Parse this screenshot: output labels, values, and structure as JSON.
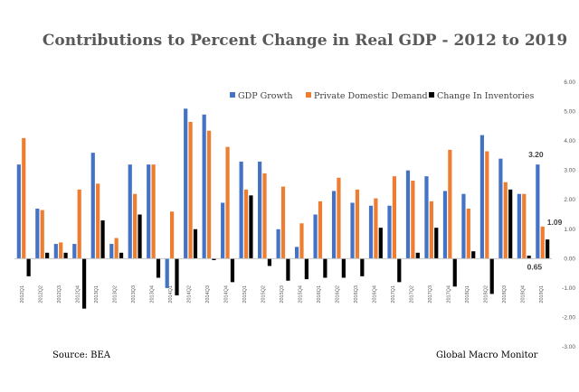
{
  "colors": {
    "gdp": "#4472C4",
    "pdd": "#ED7D31",
    "inv": "#000000",
    "text": "#595959",
    "axis": "#d9d9d9"
  },
  "chart_data": {
    "type": "bar",
    "title": "Contributions to Percent Change in Real GDP - 2012 to 2019",
    "ylim": [
      -3.0,
      6.0
    ],
    "y_ticks": [
      "6.00",
      "5.00",
      "4.00",
      "3.00",
      "2.00",
      "1.00",
      "0.00",
      "-1.00",
      "-2.00",
      "-3.00"
    ],
    "y_tick_values": [
      6,
      5,
      4,
      3,
      2,
      1,
      0,
      -1,
      -2,
      -3
    ],
    "legend_position": "top-right",
    "categories": [
      "2012Q1",
      "2012Q2",
      "2012Q3",
      "2012Q4",
      "2013Q1",
      "2013Q2",
      "2013Q3",
      "2013Q4",
      "2014Q1",
      "2014Q2",
      "2014Q3",
      "2014Q4",
      "2015Q1",
      "2015Q2",
      "2015Q3",
      "2015Q4",
      "2016Q1",
      "2016Q2",
      "2016Q3",
      "2016Q4",
      "2017Q1",
      "2017Q2",
      "2017Q3",
      "2017Q4",
      "2018Q1",
      "2018Q2",
      "2018Q3",
      "2018Q4",
      "2019Q1"
    ],
    "series": [
      {
        "name": "GDP Growth",
        "key": "gdp",
        "values": [
          3.2,
          1.7,
          0.5,
          0.5,
          3.6,
          0.5,
          3.2,
          3.2,
          -1.0,
          5.1,
          4.9,
          1.9,
          3.3,
          3.3,
          1.0,
          0.4,
          1.5,
          2.3,
          1.9,
          1.8,
          1.8,
          3.0,
          2.8,
          2.3,
          2.2,
          4.2,
          3.4,
          2.2,
          3.2
        ]
      },
      {
        "name": "Private Domestic Demand",
        "key": "pdd",
        "values": [
          4.1,
          1.65,
          0.55,
          2.35,
          2.55,
          0.7,
          2.2,
          3.2,
          1.6,
          4.65,
          4.35,
          3.8,
          2.35,
          2.9,
          2.45,
          1.2,
          1.95,
          2.75,
          2.35,
          2.05,
          2.8,
          2.65,
          1.95,
          3.7,
          1.7,
          3.65,
          2.6,
          2.2,
          1.09
        ]
      },
      {
        "name": "Change In Inventories",
        "key": "inv",
        "values": [
          -0.6,
          0.2,
          0.2,
          -1.7,
          1.3,
          0.2,
          1.5,
          -0.65,
          -1.25,
          1.0,
          -0.05,
          -0.8,
          2.15,
          -0.25,
          -0.75,
          -0.7,
          -0.65,
          -0.65,
          -0.6,
          1.05,
          -0.8,
          0.2,
          1.05,
          -0.95,
          0.25,
          -1.2,
          2.35,
          0.1,
          0.65
        ]
      }
    ],
    "annotations": [
      {
        "label": "3.20",
        "series": "gdp",
        "category": "2019Q1",
        "value": 3.2
      },
      {
        "label": "1.09",
        "series": "pdd",
        "category": "2019Q1",
        "value": 1.09
      },
      {
        "label": "0.65",
        "series": "inv",
        "category": "2019Q1",
        "value": 0.65
      }
    ],
    "source_note": "Source:  BEA",
    "credit_note": "Global Macro Monitor"
  }
}
